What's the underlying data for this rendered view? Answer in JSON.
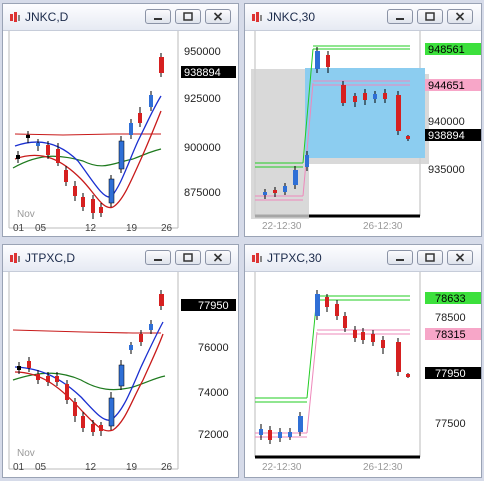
{
  "windows": [
    {
      "title": "JNKC,D",
      "price_labels": [
        {
          "text": "950000",
          "style": "plain"
        },
        {
          "text": "938894",
          "style": "black"
        },
        {
          "text": "925000",
          "style": "plain"
        },
        {
          "text": "900000",
          "style": "plain"
        },
        {
          "text": "875000",
          "style": "plain"
        }
      ],
      "x_labels": [
        "01",
        "05",
        "12",
        "19",
        "26"
      ],
      "month_label": "Nov"
    },
    {
      "title": "JNKC,30",
      "price_labels": [
        {
          "text": "948561",
          "style": "green"
        },
        {
          "text": "944651",
          "style": "pink"
        },
        {
          "text": "940000",
          "style": "plain"
        },
        {
          "text": "938894",
          "style": "black"
        },
        {
          "text": "935000",
          "style": "plain"
        }
      ],
      "x_labels": [
        "22-12:30",
        "26-12:30"
      ]
    },
    {
      "title": "JTPXC,D",
      "price_labels": [
        {
          "text": "77950",
          "style": "black"
        },
        {
          "text": "76000",
          "style": "plain"
        },
        {
          "text": "74000",
          "style": "plain"
        },
        {
          "text": "72000",
          "style": "plain"
        }
      ],
      "x_labels": [
        "01",
        "05",
        "12",
        "19",
        "26"
      ],
      "month_label": "Nov"
    },
    {
      "title": "JTPXC,30",
      "price_labels": [
        {
          "text": "78633",
          "style": "green"
        },
        {
          "text": "78500",
          "style": "plain"
        },
        {
          "text": "78315",
          "style": "pink"
        },
        {
          "text": "77950",
          "style": "black"
        },
        {
          "text": "77500",
          "style": "plain"
        }
      ],
      "x_labels": [
        "22-12:30",
        "26-12:30"
      ]
    }
  ],
  "colors": {
    "up": "#2f6fd6",
    "down": "#d62020",
    "ma_red": "#c81a1a",
    "ma_blue": "#1a2fd0",
    "ma_green": "#1e7a1e",
    "band_green": "#22cc22",
    "band_pink": "#ee88bb",
    "label_green": "#3ce03c",
    "label_pink": "#f7a6c8",
    "highlight": "#8ccdf0"
  }
}
